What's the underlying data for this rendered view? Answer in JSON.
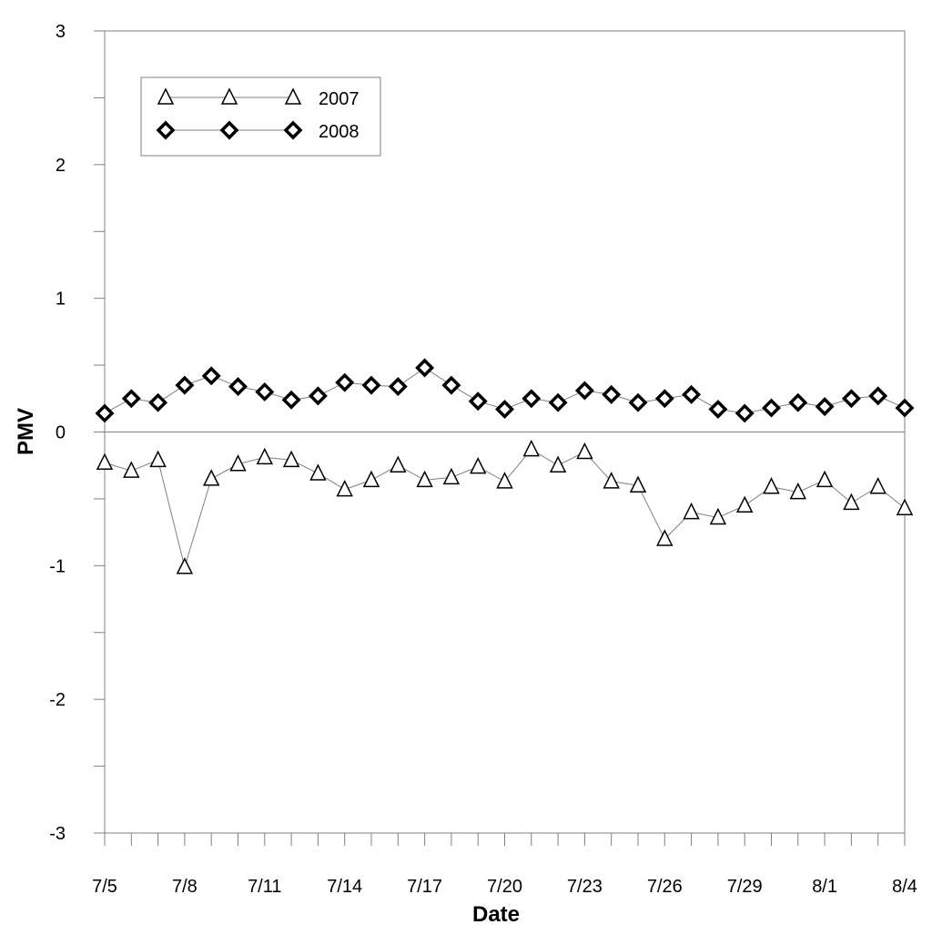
{
  "chart_data": {
    "type": "line",
    "title": "",
    "xlabel": "Date",
    "ylabel": "PMV",
    "ylim": [
      -3,
      3
    ],
    "y_ticks": [
      "3",
      "2",
      "1",
      "0",
      "-1",
      "-2",
      "-3"
    ],
    "y_tick_values": [
      3,
      2,
      1,
      0,
      -1,
      -2,
      -3
    ],
    "x": [
      "7/5",
      "7/6",
      "7/7",
      "7/8",
      "7/9",
      "7/10",
      "7/11",
      "7/12",
      "7/13",
      "7/14",
      "7/15",
      "7/16",
      "7/17",
      "7/18",
      "7/19",
      "7/20",
      "7/21",
      "7/22",
      "7/23",
      "7/24",
      "7/25",
      "7/26",
      "7/27",
      "7/28",
      "7/29",
      "7/30",
      "7/31",
      "8/1",
      "8/2",
      "8/3",
      "8/4"
    ],
    "x_tick_labels": [
      "7/5",
      "7/8",
      "7/11",
      "7/14",
      "7/17",
      "7/20",
      "7/23",
      "7/26",
      "7/29",
      "8/1",
      "8/4"
    ],
    "grid": false,
    "legend_position": "top-left",
    "series": [
      {
        "name": "2007",
        "marker": "triangle",
        "values": [
          -0.23,
          -0.29,
          -0.21,
          -1.01,
          -0.35,
          -0.24,
          -0.19,
          -0.21,
          -0.31,
          -0.43,
          -0.36,
          -0.25,
          -0.36,
          -0.34,
          -0.26,
          -0.37,
          -0.13,
          -0.25,
          -0.15,
          -0.37,
          -0.4,
          -0.8,
          -0.6,
          -0.64,
          -0.55,
          -0.41,
          -0.45,
          -0.36,
          -0.53,
          -0.41,
          -0.57
        ]
      },
      {
        "name": "2008",
        "marker": "diamond",
        "values": [
          0.14,
          0.25,
          0.22,
          0.35,
          0.42,
          0.34,
          0.3,
          0.24,
          0.27,
          0.37,
          0.35,
          0.34,
          0.48,
          0.35,
          0.23,
          0.17,
          0.25,
          0.22,
          0.31,
          0.28,
          0.22,
          0.25,
          0.28,
          0.17,
          0.14,
          0.18,
          0.22,
          0.19,
          0.25,
          0.27,
          0.18
        ]
      }
    ]
  }
}
